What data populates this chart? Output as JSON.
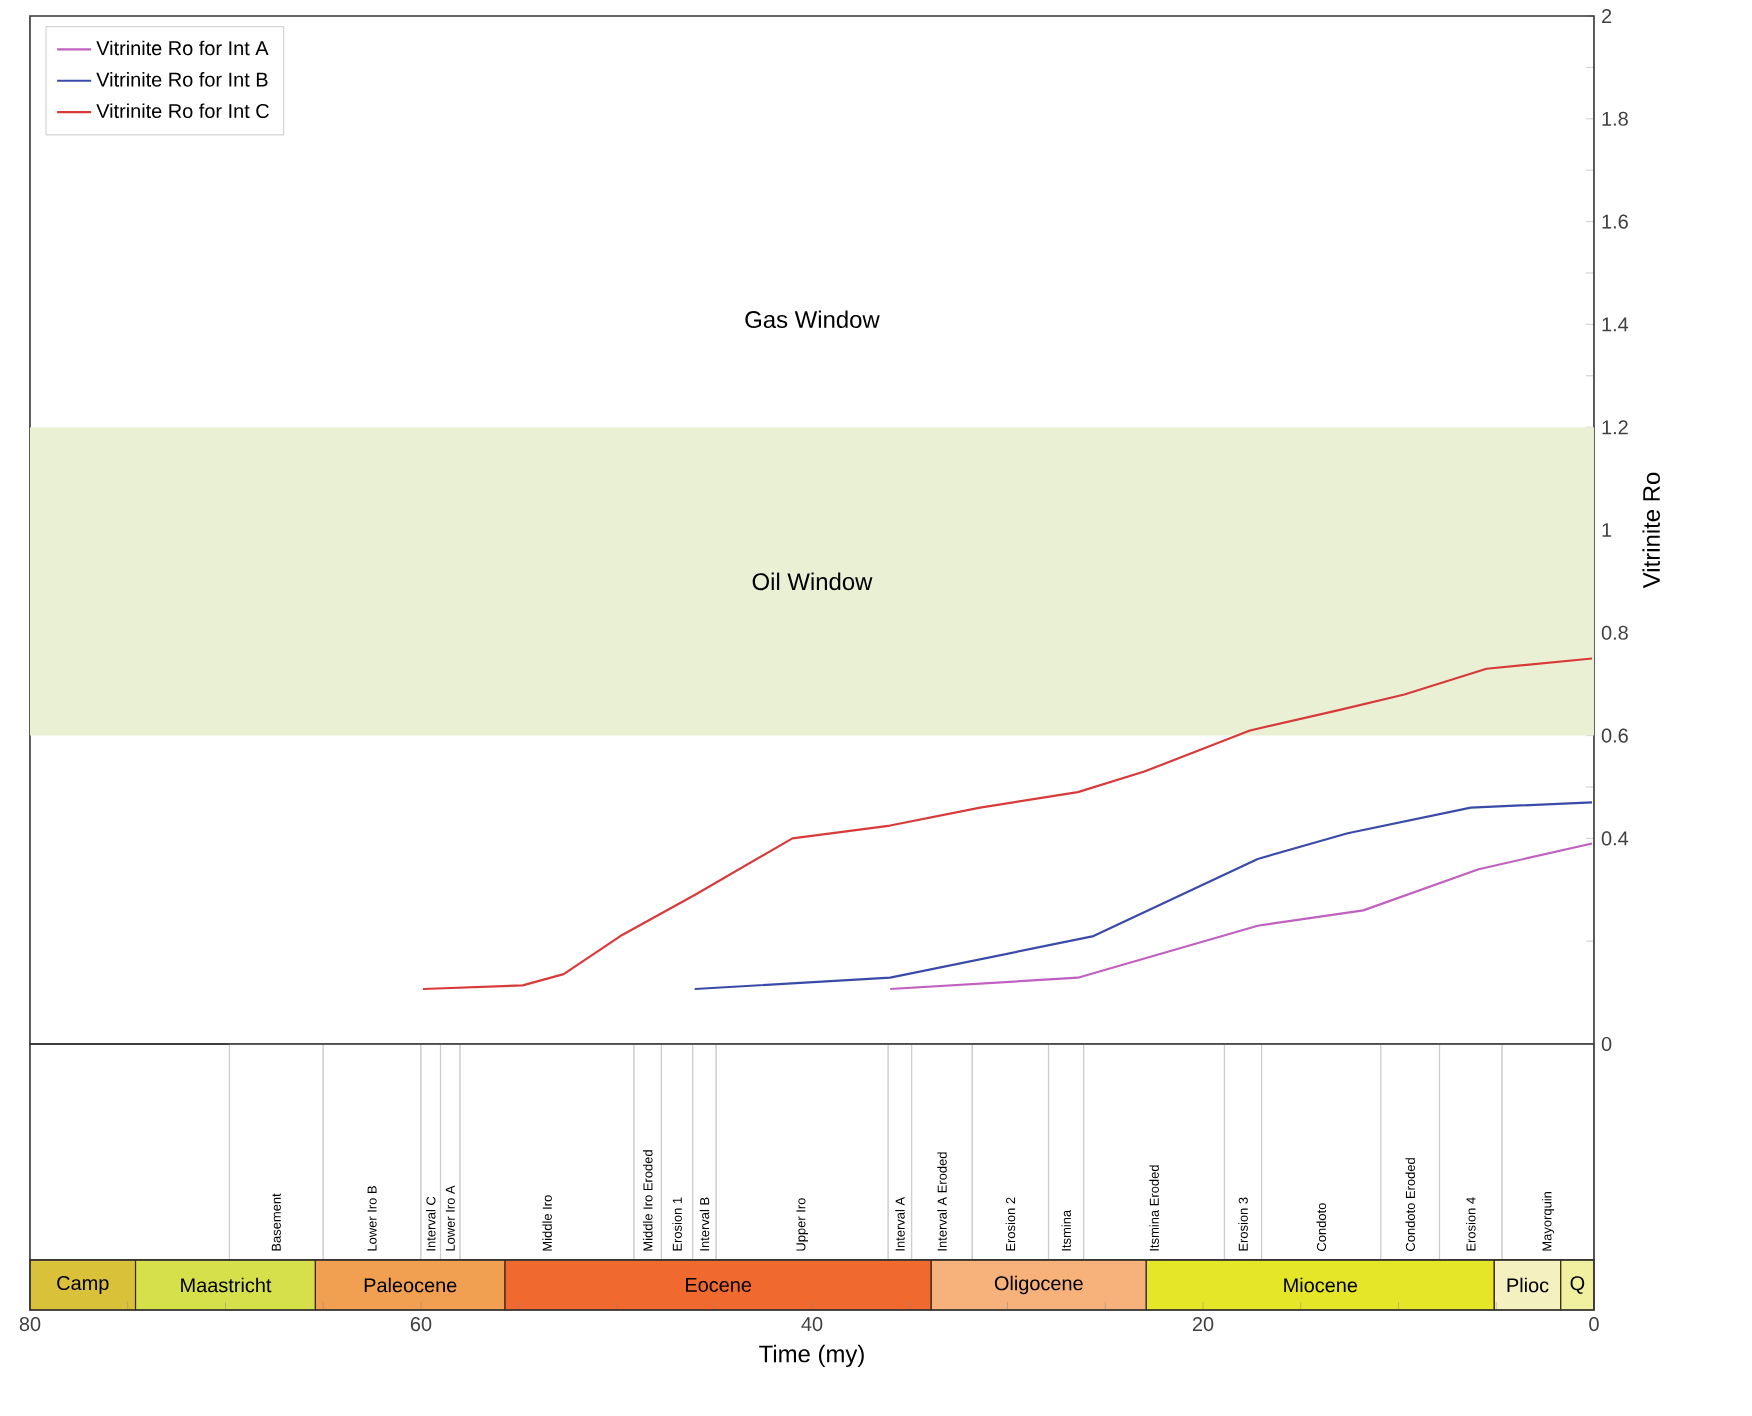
{
  "chart_data": [
    {
      "type": "line",
      "ylabel": "Vitrinite Ro",
      "xlim": [
        80,
        0
      ],
      "ylim": [
        0,
        2
      ],
      "tick_labels": "y",
      "legend": "top left",
      "marker": "none",
      "line_style": "solid",
      "yticks": [
        0,
        {
          "value": 0.2,
          "label": null
        },
        0.4,
        {
          "value": 0.5,
          "label": null
        },
        0.6,
        {
          "value": 0.7,
          "label": null
        },
        0.8,
        {
          "value": 0.9,
          "label": null
        },
        1,
        {
          "value": 1.1,
          "label": null
        },
        1.2,
        {
          "value": 1.3,
          "label": null
        },
        1.4,
        {
          "value": 1.5,
          "label": null
        },
        1.6,
        {
          "value": 1.7,
          "label": null
        },
        1.8,
        {
          "value": 1.9,
          "label": null
        },
        2
      ],
      "series": [
        {
          "name": "Vitrinite Ro for Int A",
          "color": "#c060c0",
          "x": [
            36.0,
            26.4,
            17.2,
            11.8,
            5.9,
            0.1
          ],
          "values": [
            0.107,
            0.129,
            0.23,
            0.26,
            0.34,
            0.39
          ]
        },
        {
          "name": "Vitrinite Ro for Int B",
          "color": "#3a4aa8",
          "x": [
            46.0,
            36.0,
            25.6,
            17.2,
            12.6,
            6.3,
            0.1
          ],
          "values": [
            0.107,
            0.129,
            0.21,
            0.36,
            0.41,
            0.46,
            0.47
          ]
        },
        {
          "name": "Vitrinite Ro for Int C",
          "color": "#d83a3a",
          "x": [
            59.9,
            54.8,
            52.7,
            49.8,
            46.0,
            41.0,
            36.0,
            31.4,
            26.4,
            23.0,
            17.6,
            13.0,
            9.7,
            5.5,
            0.1
          ],
          "values": [
            0.107,
            0.114,
            0.136,
            0.21,
            0.29,
            0.4,
            0.425,
            0.46,
            0.49,
            0.53,
            0.61,
            0.65,
            0.68,
            0.73,
            0.75
          ]
        }
      ],
      "bands": [
        {
          "axis": "y",
          "from": 0.6,
          "to": 1.2,
          "label": "Oil Window",
          "color": "#e9f0d4"
        }
      ],
      "annotations": [
        "Gas Window"
      ]
    },
    {
      "type": "bar",
      "orientation": "horizontal",
      "stacked": true,
      "xlim": [
        80,
        0
      ],
      "tick_labels": false,
      "categories": [
        null
      ],
      "series": [
        {
          "name": "Mayorquin",
          "color": "#ffffff",
          "values": [
            4.7
          ]
        },
        {
          "name": "Erosion 4",
          "color": "#ffffff",
          "values": [
            3.2
          ]
        },
        {
          "name": "Condoto Eroded",
          "color": "#ffffff",
          "values": [
            3.0
          ]
        },
        {
          "name": "Condoto",
          "color": "#ffffff",
          "values": [
            6.1
          ]
        },
        {
          "name": "Erosion 3",
          "color": "#ffffff",
          "values": [
            1.9
          ]
        },
        {
          "name": "Itsmina Eroded",
          "color": "#ffffff",
          "values": [
            7.2
          ]
        },
        {
          "name": "Itsmina",
          "color": "#ffffff",
          "values": [
            1.8
          ]
        },
        {
          "name": "Erosion 2",
          "color": "#ffffff",
          "values": [
            3.9
          ]
        },
        {
          "name": "Interval A Eroded",
          "color": "#ffffff",
          "values": [
            3.1
          ]
        },
        {
          "name": "Interval A",
          "color": "#ffffff",
          "values": [
            1.2
          ]
        },
        {
          "name": "Upper Iro",
          "color": "#ffffff",
          "values": [
            8.8
          ]
        },
        {
          "name": "Interval B",
          "color": "#ffffff",
          "values": [
            1.2
          ]
        },
        {
          "name": "Erosion 1",
          "color": "#ffffff",
          "values": [
            1.6
          ]
        },
        {
          "name": "Middle Iro Eroded",
          "color": "#ffffff",
          "values": [
            1.4
          ]
        },
        {
          "name": "Middle Iro",
          "color": "#ffffff",
          "values": [
            8.9
          ]
        },
        {
          "name": "Lower Iro A",
          "color": "#ffffff",
          "values": [
            1.0
          ]
        },
        {
          "name": "Interval C",
          "color": "#ffffff",
          "values": [
            1.0
          ]
        },
        {
          "name": "Lower Iro B",
          "color": "#ffffff",
          "values": [
            5.0
          ]
        },
        {
          "name": "Basement",
          "color": "#ffffff",
          "values": [
            4.8
          ]
        }
      ]
    },
    {
      "type": "bar",
      "orientation": "horizontal",
      "stacked": true,
      "xlabel": "Time (my)",
      "xlim": [
        80,
        0
      ],
      "tick_labels": "x",
      "categories": [
        null
      ],
      "xticks": [
        80,
        {
          "value": 75,
          "label": null
        },
        {
          "value": 70,
          "label": null
        },
        {
          "value": 65,
          "label": null
        },
        60,
        {
          "value": 55,
          "label": null
        },
        {
          "value": 50,
          "label": null
        },
        {
          "value": 45,
          "label": null
        },
        40,
        {
          "value": 35,
          "label": null
        },
        {
          "value": 30,
          "label": null
        },
        {
          "value": 25,
          "label": null
        },
        20,
        {
          "value": 15,
          "label": null
        },
        {
          "value": 10,
          "label": null
        },
        {
          "value": 5,
          "label": null
        },
        0
      ],
      "series": [
        {
          "name": "Q",
          "color": "#f0f0a0",
          "values": [
            1.7
          ]
        },
        {
          "name": "Plioc",
          "color": "#f4f0c0",
          "values": [
            3.4
          ]
        },
        {
          "name": "Miocene",
          "color": "#e6e628",
          "values": [
            17.8
          ]
        },
        {
          "name": "Oligocene",
          "color": "#f6b27a",
          "values": [
            11.0
          ]
        },
        {
          "name": "Eocene",
          "color": "#f06a30",
          "values": [
            21.8
          ]
        },
        {
          "name": "Paleocene",
          "color": "#f0a050",
          "values": [
            9.7
          ]
        },
        {
          "name": "Maastricht",
          "color": "#d6e04a",
          "values": [
            9.2
          ]
        },
        {
          "name": "Camp",
          "color": "#d9c23a",
          "values": [
            5.4
          ]
        }
      ]
    }
  ]
}
